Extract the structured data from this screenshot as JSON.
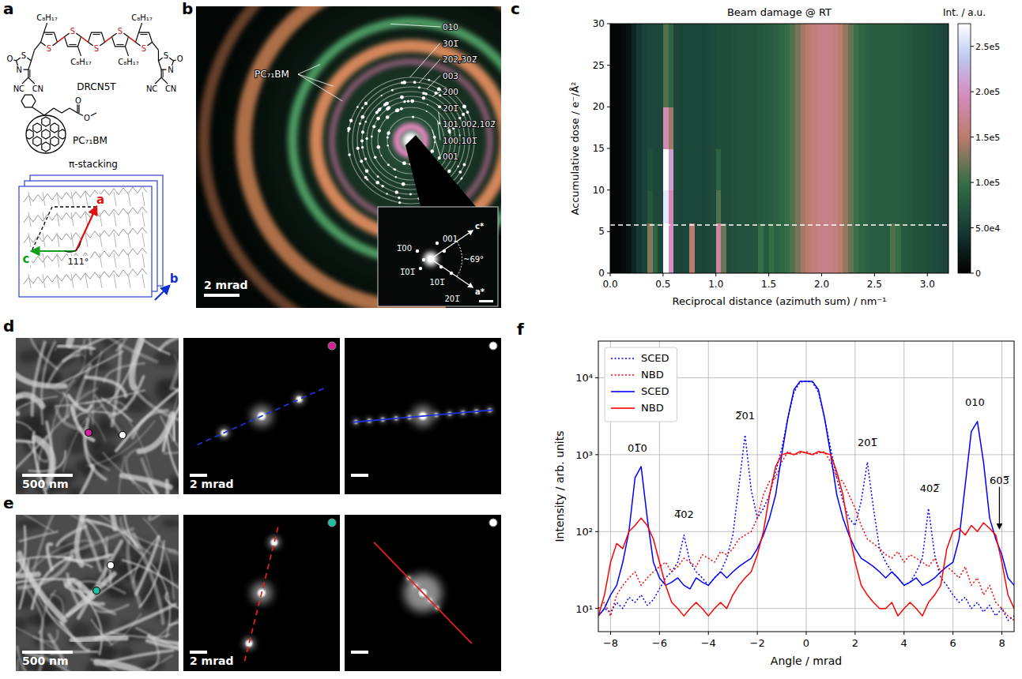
{
  "chart_data": [
    {
      "type": "structure",
      "panel_label": "a",
      "molecules": [
        {
          "name": "DRCN5T",
          "chains": [
            "C₈H₁₇",
            "C₈H₁₇",
            "C₈H₁₇",
            "C₈H₁₇"
          ],
          "ring_atoms": [
            "S",
            "S",
            "S",
            "S",
            "S"
          ],
          "end_group_atoms": [
            "S",
            "N",
            "O",
            "NC",
            "CN"
          ]
        },
        {
          "name": "PC₇₁BM",
          "ester_atoms": [
            "O",
            "O"
          ]
        }
      ],
      "lattice": {
        "label": "π-stacking",
        "axes": [
          "a",
          "c",
          "b"
        ],
        "angle": "111°"
      }
    },
    {
      "type": "diffraction",
      "panel_label": "b",
      "ring_labels": [
        "010",
        "301̅",
        "202,302̅",
        "003",
        "200",
        "201̅",
        "101,002,102̅",
        "100,101̅",
        "001"
      ],
      "annotation": "PC₇₁BM",
      "scale_bar": "2 mrad",
      "inset": {
        "spot_labels": [
          "001",
          "1̅00",
          "1̅01̅",
          "101̅",
          "201̅"
        ],
        "axes": [
          "c*",
          "a*"
        ],
        "angle": "~69°"
      }
    },
    {
      "type": "heatmap",
      "panel_label": "c",
      "title": "Beam damage @ RT",
      "x_label": "Reciprocal distance (azimuth sum) / nm⁻¹",
      "y_label": "Accumulative dose / e⁻/Å²",
      "xlim": [
        0,
        3.2
      ],
      "xticks": [
        {
          "value": 0,
          "label": "0.0"
        },
        0.5,
        {
          "value": 1,
          "label": "1.0"
        },
        1.5,
        {
          "value": 2,
          "label": "2.0"
        },
        2.5,
        {
          "value": 3,
          "label": "3.0"
        }
      ],
      "ylim": [
        0,
        30
      ],
      "yticks": [
        0,
        5,
        10,
        15,
        20,
        25,
        30
      ],
      "marked_dose": 5.8,
      "x_edges": [
        0,
        0.05,
        0.1,
        0.15,
        0.2,
        0.25,
        0.3,
        0.35,
        0.4,
        0.45,
        0.5,
        0.55,
        0.6,
        0.65,
        0.7,
        0.75,
        0.8,
        0.85,
        0.9,
        0.95,
        1,
        1.05,
        1.1,
        1.15,
        1.2,
        1.25,
        1.3,
        1.35,
        1.4,
        1.45,
        1.5,
        1.55,
        1.6,
        1.65,
        1.7,
        1.75,
        1.8,
        1.85,
        1.9,
        1.95,
        2,
        2.05,
        2.1,
        2.15,
        2.2,
        2.25,
        2.3,
        2.35,
        2.4,
        2.45,
        2.5,
        2.55,
        2.6,
        2.65,
        2.7,
        2.75,
        2.8,
        2.85,
        2.9,
        2.95,
        3,
        3.05,
        3.1,
        3.15,
        3.2
      ],
      "y_edges": [
        0,
        6,
        10,
        15,
        20,
        30
      ],
      "cells": [
        [
          5000,
          5000,
          8000,
          15000,
          30000,
          45000,
          55000,
          130000,
          90000,
          60000,
          275000,
          200000,
          60000,
          58000,
          58000,
          150000,
          58000,
          58000,
          60000,
          62000,
          180000,
          120000,
          65000,
          68000,
          70000,
          70000,
          72000,
          72000,
          100000,
          78000,
          100000,
          85000,
          92000,
          100000,
          110000,
          125000,
          140000,
          150000,
          158000,
          162000,
          165000,
          165000,
          160000,
          150000,
          135000,
          118000,
          102000,
          92000,
          85000,
          82000,
          80000,
          80000,
          80000,
          110000,
          100000,
          78000,
          75000,
          72000,
          70000,
          68000,
          65000,
          63000,
          60000,
          58000
        ],
        [
          5000,
          5000,
          8000,
          15000,
          30000,
          45000,
          55000,
          75000,
          60000,
          60000,
          260000,
          190000,
          60000,
          58000,
          58000,
          58000,
          58000,
          58000,
          60000,
          62000,
          110000,
          65000,
          65000,
          68000,
          70000,
          70000,
          72000,
          72000,
          75000,
          78000,
          80000,
          85000,
          92000,
          100000,
          110000,
          125000,
          140000,
          150000,
          158000,
          162000,
          165000,
          165000,
          160000,
          150000,
          135000,
          118000,
          102000,
          92000,
          85000,
          82000,
          80000,
          80000,
          80000,
          80000,
          80000,
          78000,
          75000,
          72000,
          70000,
          68000,
          65000,
          63000,
          60000,
          58000
        ],
        [
          5000,
          5000,
          8000,
          15000,
          30000,
          45000,
          55000,
          65000,
          60000,
          60000,
          275000,
          210000,
          60000,
          58000,
          58000,
          58000,
          58000,
          58000,
          60000,
          62000,
          85000,
          65000,
          65000,
          68000,
          70000,
          70000,
          72000,
          72000,
          75000,
          78000,
          80000,
          85000,
          92000,
          100000,
          110000,
          125000,
          140000,
          150000,
          158000,
          162000,
          165000,
          165000,
          160000,
          150000,
          135000,
          118000,
          102000,
          92000,
          85000,
          82000,
          80000,
          80000,
          80000,
          80000,
          80000,
          78000,
          75000,
          72000,
          70000,
          68000,
          65000,
          63000,
          60000,
          58000
        ],
        [
          5000,
          5000,
          8000,
          15000,
          30000,
          45000,
          55000,
          60000,
          60000,
          60000,
          190000,
          140000,
          60000,
          58000,
          58000,
          58000,
          58000,
          58000,
          60000,
          62000,
          65000,
          65000,
          65000,
          68000,
          70000,
          70000,
          72000,
          72000,
          75000,
          78000,
          80000,
          85000,
          92000,
          100000,
          110000,
          125000,
          140000,
          150000,
          158000,
          162000,
          165000,
          165000,
          160000,
          150000,
          135000,
          118000,
          102000,
          92000,
          85000,
          82000,
          80000,
          80000,
          80000,
          80000,
          80000,
          78000,
          75000,
          72000,
          70000,
          68000,
          65000,
          63000,
          60000,
          58000
        ],
        [
          5000,
          5000,
          8000,
          15000,
          30000,
          45000,
          55000,
          60000,
          60000,
          60000,
          110000,
          90000,
          60000,
          58000,
          58000,
          58000,
          58000,
          58000,
          60000,
          62000,
          65000,
          65000,
          65000,
          68000,
          70000,
          70000,
          72000,
          72000,
          75000,
          78000,
          80000,
          85000,
          92000,
          100000,
          110000,
          125000,
          140000,
          150000,
          158000,
          162000,
          165000,
          165000,
          160000,
          150000,
          135000,
          118000,
          102000,
          92000,
          85000,
          82000,
          80000,
          80000,
          80000,
          80000,
          80000,
          78000,
          75000,
          72000,
          70000,
          68000,
          65000,
          63000,
          60000,
          58000
        ]
      ],
      "colorbar": {
        "label": "Int. / a.u.",
        "range": [
          0,
          275000
        ],
        "ticks": [
          0,
          {
            "value": 50000,
            "label": "5.0e4"
          },
          {
            "value": 100000,
            "label": "1.0e5"
          },
          {
            "value": 150000,
            "label": "1.5e5"
          },
          {
            "value": 200000,
            "label": "2.0e5"
          },
          {
            "value": 250000,
            "label": "2.5e5"
          }
        ]
      }
    },
    {
      "type": "micrograph",
      "panel_label": "d",
      "scale_bar": "500 nm",
      "diffraction_scale_bar": "2 mrad",
      "colors": [
        "#d0209a",
        "#ffffff"
      ],
      "lines": [
        {
          "color": "#2030d0",
          "line_style": "dashed"
        },
        {
          "color": "#2030d0",
          "line_style": "solid"
        }
      ]
    },
    {
      "type": "micrograph",
      "panel_label": "e",
      "scale_bar": "500 nm",
      "diffraction_scale_bar": "2 mrad",
      "colors": [
        "#20c0a0",
        "#ffffff"
      ],
      "lines": [
        {
          "color": "#e02020",
          "line_style": "dashed"
        },
        {
          "color": "#e02020",
          "line_style": "solid"
        }
      ]
    },
    {
      "type": "line",
      "panel_label": "f",
      "x_label": "Angle / mrad",
      "y_label": "Intensity / arb. units",
      "log": "y",
      "grid": true,
      "legend": "upper-left",
      "xlim": [
        -8.5,
        8.5
      ],
      "xticks": [
        {
          "value": -8,
          "label": "−8"
        },
        {
          "value": -6,
          "label": "−6"
        },
        {
          "value": -4,
          "label": "−4"
        },
        {
          "value": -2,
          "label": "−2"
        },
        0,
        2,
        4,
        6,
        8
      ],
      "ylim": [
        5,
        30000
      ],
      "yticks": [
        {
          "value": 10,
          "label": "10¹"
        },
        {
          "value": 100,
          "label": "10²"
        },
        {
          "value": 1000,
          "label": "10³"
        },
        {
          "value": 10000,
          "label": "10⁴"
        }
      ],
      "x": [
        -8.5,
        -8.25,
        -8,
        -7.75,
        -7.5,
        -7.25,
        -7,
        -6.75,
        -6.5,
        -6.25,
        -6,
        -5.75,
        -5.5,
        -5.25,
        -5,
        -4.75,
        -4.5,
        -4.25,
        -4,
        -3.75,
        -3.5,
        -3.25,
        -3,
        -2.75,
        -2.5,
        -2.25,
        -2,
        -1.75,
        -1.5,
        -1.25,
        -1,
        -0.75,
        -0.5,
        -0.25,
        0,
        0.25,
        0.5,
        0.75,
        1,
        1.25,
        1.5,
        1.75,
        2,
        2.25,
        2.5,
        2.75,
        3,
        3.25,
        3.5,
        3.75,
        4,
        4.25,
        4.5,
        4.75,
        5,
        5.25,
        5.5,
        5.75,
        6,
        6.25,
        6.5,
        6.75,
        7,
        7.25,
        7.5,
        7.75,
        8,
        8.25,
        8.5
      ],
      "series": [
        {
          "name": "SCED",
          "color": "#0000ff",
          "line_style": "dotted",
          "values": [
            8,
            10,
            9,
            12,
            10,
            14,
            12,
            15,
            11,
            13,
            18,
            25,
            30,
            40,
            90,
            40,
            30,
            25,
            20,
            25,
            30,
            45,
            90,
            400,
            1800,
            350,
            150,
            200,
            300,
            600,
            1200,
            3000,
            6500,
            8800,
            9000,
            8800,
            6500,
            3000,
            1200,
            500,
            250,
            150,
            120,
            250,
            800,
            200,
            60,
            40,
            30,
            25,
            20,
            22,
            30,
            45,
            200,
            50,
            25,
            20,
            15,
            12,
            14,
            10,
            12,
            9,
            11,
            8,
            10,
            7,
            8
          ]
        },
        {
          "name": "NBD",
          "color": "#ff0000",
          "line_style": "dotted",
          "values": [
            10,
            12,
            8,
            15,
            20,
            25,
            30,
            20,
            25,
            30,
            35,
            40,
            30,
            35,
            45,
            40,
            35,
            50,
            45,
            40,
            55,
            50,
            60,
            80,
            90,
            100,
            150,
            300,
            450,
            500,
            800,
            1100,
            1000,
            1050,
            1100,
            1000,
            1050,
            1100,
            800,
            500,
            450,
            300,
            200,
            120,
            80,
            70,
            60,
            50,
            45,
            55,
            40,
            50,
            45,
            40,
            35,
            45,
            30,
            35,
            30,
            25,
            35,
            20,
            25,
            15,
            20,
            12,
            10,
            8,
            7
          ]
        },
        {
          "name": "SCED",
          "color": "#0000ff",
          "line_style": "solid",
          "values": [
            8,
            10,
            15,
            20,
            40,
            100,
            500,
            700,
            150,
            40,
            25,
            20,
            22,
            25,
            20,
            18,
            25,
            22,
            20,
            25,
            30,
            25,
            30,
            35,
            40,
            45,
            60,
            90,
            150,
            300,
            1000,
            3000,
            7000,
            9000,
            9000,
            9000,
            7000,
            3000,
            1000,
            300,
            150,
            90,
            60,
            45,
            40,
            35,
            30,
            25,
            30,
            25,
            20,
            22,
            25,
            20,
            22,
            25,
            30,
            35,
            40,
            80,
            400,
            2000,
            2700,
            800,
            150,
            80,
            50,
            25,
            20
          ]
        },
        {
          "name": "NBD",
          "color": "#ff0000",
          "line_style": "solid",
          "values": [
            8,
            15,
            40,
            70,
            60,
            100,
            120,
            150,
            120,
            80,
            40,
            20,
            12,
            10,
            8,
            10,
            12,
            10,
            8,
            10,
            12,
            10,
            15,
            20,
            25,
            30,
            50,
            100,
            300,
            700,
            1000,
            1050,
            1000,
            1100,
            1050,
            1000,
            1100,
            1050,
            1000,
            600,
            300,
            100,
            40,
            20,
            15,
            12,
            10,
            10,
            12,
            8,
            10,
            12,
            10,
            8,
            12,
            15,
            20,
            60,
            100,
            110,
            90,
            120,
            100,
            130,
            110,
            90,
            40,
            15,
            10
          ]
        }
      ],
      "annotations": [
        {
          "label": "01̅0",
          "x": -6.9,
          "y": 1100
        },
        {
          "label": "4̅02",
          "x": -5,
          "y": 150
        },
        {
          "label": "2̅01",
          "x": -2.5,
          "y": 2900
        },
        {
          "label": "201̅",
          "x": 2.5,
          "y": 1300
        },
        {
          "label": "402̅",
          "x": 5.05,
          "y": 330
        },
        {
          "label": "010",
          "x": 6.9,
          "y": 4300
        },
        {
          "label": "603̅",
          "x": 7.9,
          "y": 420,
          "arrow_y": 110
        }
      ]
    }
  ]
}
